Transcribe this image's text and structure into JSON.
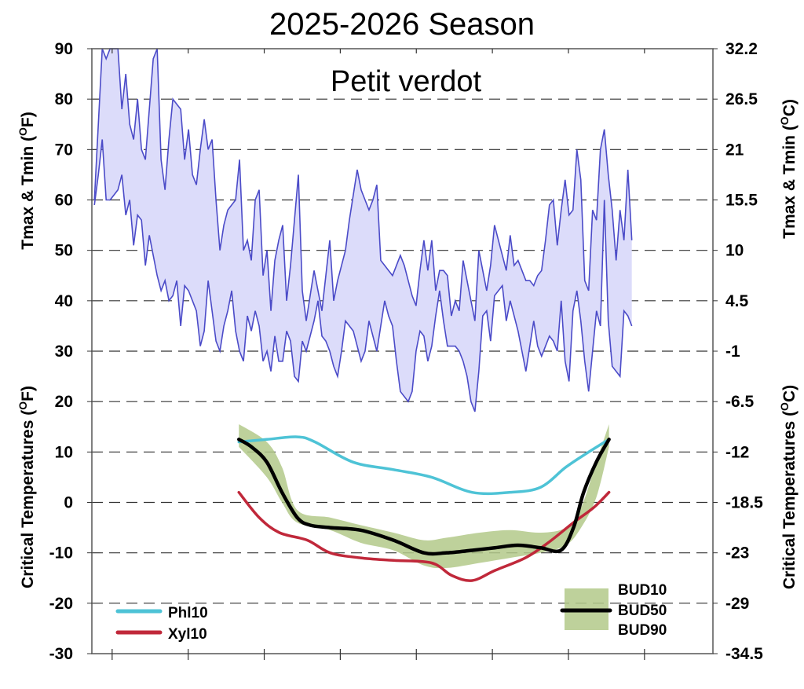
{
  "chart_data": {
    "type": "line",
    "title": "2025-2026 Season",
    "subtitle": "Petit verdot",
    "ylabel_left_top": "Tmax & Tmin (",
    "ylabel_left_bottom": "Critical Temperatures (",
    "ylabel_right_top": "Tmax & Tmin (",
    "ylabel_right_bottom": "Critical Temperatures (",
    "unit_left": "F",
    "unit_right": "C",
    "degree_mark": "O",
    "ylim": [
      -30,
      90
    ],
    "xlim": [
      0,
      245
    ],
    "x_ticks": [
      8,
      38,
      68,
      98,
      128,
      158,
      188,
      218
    ],
    "y_ticks_left": [
      "90",
      "80",
      "70",
      "60",
      "50",
      "40",
      "30",
      "20",
      "10",
      "0",
      "-10",
      "-20",
      "-30"
    ],
    "y_ticks_right": [
      "32.2",
      "26.5",
      "21",
      "15.5",
      "10",
      "4.5",
      "-1",
      "-6.5",
      "-12",
      "-18.5",
      "-23",
      "-29",
      "-34.5"
    ],
    "grid": "horizontal dashed",
    "temperature": {
      "x_range": [
        1,
        213
      ],
      "tmax": [
        60,
        75,
        92,
        88,
        90,
        91,
        92,
        78,
        85,
        75,
        72,
        80,
        70,
        68,
        78,
        88,
        90,
        68,
        62,
        72,
        80,
        79,
        78,
        68,
        74,
        65,
        63,
        70,
        76,
        70,
        72,
        60,
        50,
        55,
        58,
        59,
        60,
        68,
        50,
        52,
        48,
        60,
        62,
        45,
        50,
        38,
        48,
        52,
        55,
        40,
        47,
        56,
        65,
        42,
        36,
        41,
        46,
        42,
        38,
        45,
        52,
        40,
        44,
        47,
        50,
        56,
        61,
        66,
        62,
        60,
        58,
        60,
        63,
        48,
        47,
        46,
        45,
        47,
        49,
        47,
        44,
        41,
        39,
        46,
        52,
        46,
        52,
        42,
        46,
        46,
        45,
        37,
        40,
        38,
        48,
        44,
        40,
        36,
        50,
        46,
        42,
        47,
        55,
        52,
        49,
        46,
        53,
        47,
        48,
        46,
        44,
        44,
        43,
        45,
        46,
        52,
        59,
        60,
        51,
        58,
        64,
        57,
        58,
        70,
        64,
        44,
        42,
        58,
        56,
        70,
        74,
        65,
        58,
        48,
        58,
        52,
        66,
        52
      ],
      "tmin": [
        59,
        65,
        72,
        60,
        60,
        61,
        62,
        65,
        57,
        60,
        51,
        57,
        56,
        47,
        53,
        49,
        45,
        42,
        44,
        40,
        41,
        44,
        35,
        43,
        42,
        40,
        38,
        31,
        34,
        44,
        38,
        32,
        30,
        35,
        38,
        42,
        34,
        30,
        28,
        37,
        34,
        38,
        35,
        28,
        30,
        26,
        33,
        28,
        28,
        34,
        32,
        25,
        24,
        32,
        30,
        33,
        36,
        40,
        33,
        32,
        30,
        27,
        25,
        30,
        36,
        35,
        34,
        31,
        28,
        30,
        36,
        33,
        30,
        35,
        40,
        37,
        35,
        28,
        22,
        21,
        20,
        22,
        30,
        34,
        33,
        28,
        31,
        37,
        42,
        36,
        31,
        31,
        31,
        30,
        28,
        25,
        20,
        18,
        26,
        37,
        38,
        32,
        41,
        42,
        43,
        36,
        40,
        37,
        34,
        30,
        26,
        31,
        36,
        31,
        29,
        31,
        33,
        32,
        30,
        40,
        28,
        24,
        38,
        42,
        36,
        28,
        22,
        30,
        38,
        35,
        60,
        36,
        27,
        26,
        25,
        38,
        37,
        35
      ],
      "fill_color": "#dcdcfa",
      "line_color": "#4b4bc8"
    },
    "series": [
      {
        "name": "Phl10",
        "color": "#4ec3d6",
        "points": [
          [
            58,
            12
          ],
          [
            69,
            12.5
          ],
          [
            81,
            13
          ],
          [
            88,
            12
          ],
          [
            103,
            8
          ],
          [
            119,
            6.5
          ],
          [
            134,
            5
          ],
          [
            150,
            2
          ],
          [
            165,
            2
          ],
          [
            177,
            3
          ],
          [
            187,
            7
          ],
          [
            196,
            10
          ],
          [
            204,
            12.5
          ]
        ]
      },
      {
        "name": "Xyl10",
        "color": "#c0283a",
        "points": [
          [
            58,
            2
          ],
          [
            66,
            -3
          ],
          [
            74,
            -6
          ],
          [
            85,
            -7.5
          ],
          [
            94,
            -10
          ],
          [
            106,
            -11
          ],
          [
            119,
            -11.5
          ],
          [
            134,
            -12
          ],
          [
            142,
            -14.5
          ],
          [
            150,
            -15.5
          ],
          [
            159,
            -13.5
          ],
          [
            171,
            -11
          ],
          [
            180,
            -8
          ],
          [
            190,
            -4
          ],
          [
            198,
            -1
          ],
          [
            204,
            2
          ]
        ]
      },
      {
        "name": "BUD50",
        "color": "#000000",
        "points": [
          [
            58,
            12.5
          ],
          [
            63,
            11
          ],
          [
            69,
            8
          ],
          [
            75,
            2
          ],
          [
            81,
            -3
          ],
          [
            86,
            -4.5
          ],
          [
            94,
            -5
          ],
          [
            106,
            -5.5
          ],
          [
            119,
            -7.5
          ],
          [
            131,
            -10
          ],
          [
            140,
            -10
          ],
          [
            150,
            -9.5
          ],
          [
            159,
            -9
          ],
          [
            168,
            -8.5
          ],
          [
            177,
            -9
          ],
          [
            185,
            -9.5
          ],
          [
            190,
            -5
          ],
          [
            194,
            2
          ],
          [
            199,
            8
          ],
          [
            204,
            12.5
          ]
        ]
      }
    ],
    "band": {
      "upper_name": "BUD10",
      "lower_name": "BUD90",
      "color": "#b3c98a",
      "upper": [
        [
          58,
          15.5
        ],
        [
          69,
          12
        ],
        [
          75,
          7
        ],
        [
          81,
          -1.5
        ],
        [
          94,
          -3
        ],
        [
          106,
          -4.5
        ],
        [
          119,
          -6
        ],
        [
          131,
          -7.5
        ],
        [
          140,
          -7
        ],
        [
          153,
          -6
        ],
        [
          165,
          -5.5
        ],
        [
          177,
          -6
        ],
        [
          187,
          -5
        ],
        [
          193,
          -1
        ],
        [
          199,
          8
        ],
        [
          204,
          15.5
        ]
      ],
      "lower": [
        [
          58,
          11
        ],
        [
          69,
          5
        ],
        [
          75,
          0
        ],
        [
          81,
          -4
        ],
        [
          94,
          -5.5
        ],
        [
          106,
          -8
        ],
        [
          119,
          -9.5
        ],
        [
          131,
          -12.5
        ],
        [
          140,
          -13
        ],
        [
          153,
          -12
        ],
        [
          165,
          -11
        ],
        [
          177,
          -10
        ],
        [
          187,
          -8.5
        ],
        [
          193,
          -5
        ],
        [
          199,
          1
        ],
        [
          204,
          11
        ]
      ]
    },
    "legend": {
      "left": [
        "Phl10",
        "Xyl10"
      ],
      "right": [
        "BUD10",
        "BUD50",
        "BUD90"
      ],
      "placement": "bottom-left and bottom-right"
    }
  }
}
